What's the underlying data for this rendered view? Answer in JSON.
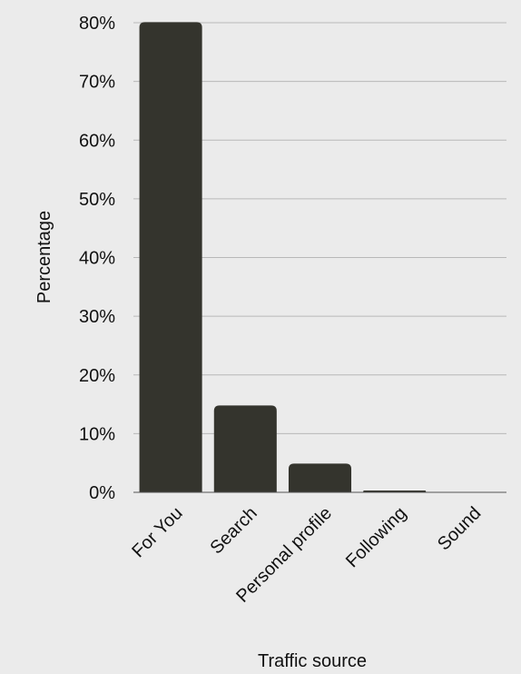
{
  "chart_data": {
    "type": "bar",
    "title": "",
    "xlabel": "Traffic source",
    "ylabel": "Percentage",
    "categories": [
      "For You",
      "Search",
      "Personal profile",
      "Following",
      "Sound"
    ],
    "values": [
      80.1,
      14.8,
      4.9,
      0.3,
      0.0
    ],
    "ylim": [
      0,
      80
    ],
    "yticks": [
      "0%",
      "10%",
      "20%",
      "30%",
      "40%",
      "50%",
      "60%",
      "70%",
      "80%"
    ],
    "grid": true,
    "legend": "none",
    "colors": {
      "bar": "#34342d",
      "grid": "#b8b8b8",
      "background": "#ebebeb"
    }
  }
}
